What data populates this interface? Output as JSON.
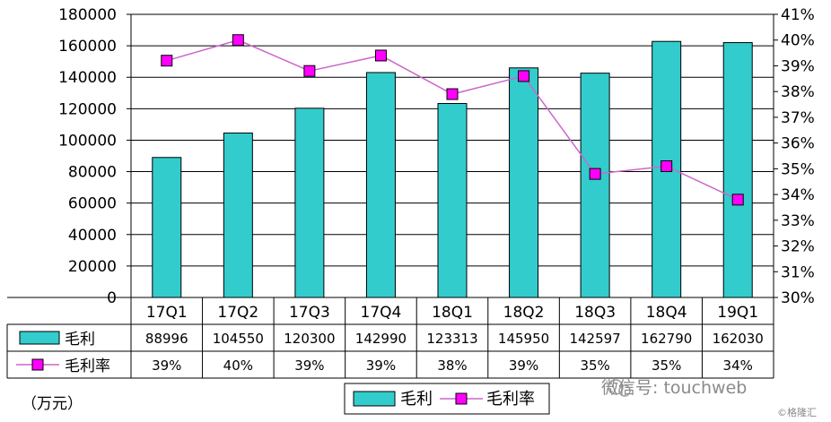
{
  "unit_label": "（万元）",
  "watermark": "微信号: touchweb",
  "watermark_small": "©格隆汇",
  "colors": {
    "bar": "#33cccc",
    "line": "#cc66cc",
    "marker": "#ff00ff"
  },
  "chart_data": {
    "type": "bar",
    "categories": [
      "17Q1",
      "17Q2",
      "17Q3",
      "17Q4",
      "18Q1",
      "18Q2",
      "18Q3",
      "18Q4",
      "19Q1"
    ],
    "series": [
      {
        "name": "毛利",
        "type": "bar",
        "axis": "left",
        "values": [
          88996,
          104550,
          120300,
          142990,
          123313,
          145950,
          142597,
          162790,
          162030
        ],
        "labels": [
          "88996",
          "104550",
          "120300",
          "142990",
          "123313",
          "145950",
          "142597",
          "162790",
          "162030"
        ]
      },
      {
        "name": "毛利率",
        "type": "line",
        "axis": "right",
        "values": [
          39.2,
          40.0,
          38.8,
          39.4,
          37.9,
          38.6,
          34.8,
          35.1,
          33.8
        ],
        "labels": [
          "39%",
          "40%",
          "39%",
          "39%",
          "38%",
          "39%",
          "35%",
          "35%",
          "34%"
        ]
      }
    ],
    "ylim_left": [
      0,
      180000
    ],
    "yticks_left": [
      "0",
      "20000",
      "40000",
      "60000",
      "80000",
      "100000",
      "120000",
      "140000",
      "160000",
      "180000"
    ],
    "ylim_right": [
      30,
      41
    ],
    "yticks_right": [
      "30%",
      "31%",
      "32%",
      "33%",
      "34%",
      "35%",
      "36%",
      "37%",
      "38%",
      "39%",
      "40%",
      "41%"
    ],
    "grid": true,
    "legend_position": "bottom"
  }
}
